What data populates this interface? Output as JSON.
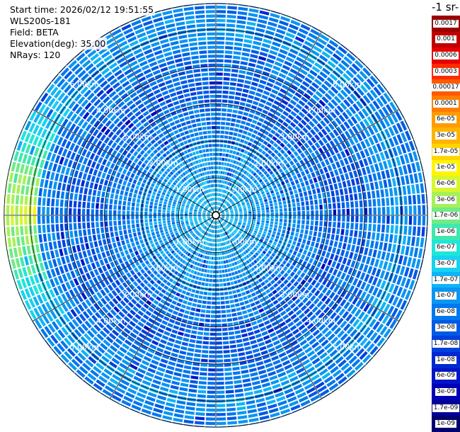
{
  "info": {
    "start_time": "Start time: 2026/02/12 19:51:55",
    "instrument": "WLS200s-181",
    "field": "Field: BETA",
    "elevation": "Elevation(deg): 35.00",
    "nrays": "NRays: 120"
  },
  "colorbar": {
    "unit_label": "-1 sr-",
    "levels": [
      {
        "label": "0.0017",
        "color": "#9b0000"
      },
      {
        "label": "0.001",
        "color": "#c00000"
      },
      {
        "label": "0.0006",
        "color": "#e60000"
      },
      {
        "label": "0.0003",
        "color": "#ff2a00"
      },
      {
        "label": "0.00017",
        "color": "#ff5a00"
      },
      {
        "label": "0.0001",
        "color": "#ff7d00"
      },
      {
        "label": "6e-05",
        "color": "#ff9c00"
      },
      {
        "label": "3e-05",
        "color": "#ffb400"
      },
      {
        "label": "1.7e-05",
        "color": "#ffd400"
      },
      {
        "label": "1e-05",
        "color": "#fff500"
      },
      {
        "label": "6e-06",
        "color": "#d9f52e"
      },
      {
        "label": "3e-06",
        "color": "#a8f05a"
      },
      {
        "label": "1.7e-06",
        "color": "#70eb85"
      },
      {
        "label": "1e-06",
        "color": "#40e8b0"
      },
      {
        "label": "6e-07",
        "color": "#1ee6d8"
      },
      {
        "label": "3e-07",
        "color": "#18d2f0"
      },
      {
        "label": "1.7e-07",
        "color": "#10b4f5"
      },
      {
        "label": "1e-07",
        "color": "#0a96f2"
      },
      {
        "label": "6e-08",
        "color": "#0078ee"
      },
      {
        "label": "3e-08",
        "color": "#005ae6"
      },
      {
        "label": "1.7e-08",
        "color": "#0040dc"
      },
      {
        "label": "1e-08",
        "color": "#0028d2"
      },
      {
        "label": "6e-09",
        "color": "#0014c8"
      },
      {
        "label": "3e-09",
        "color": "#0000b4"
      },
      {
        "label": "1.7e-09",
        "color": "#000096"
      },
      {
        "label": "1e-09",
        "color": "#00006e"
      }
    ]
  },
  "chart_data": {
    "type": "heatmap",
    "projection": "polar",
    "field": "BETA",
    "nrays": 120,
    "range_rings": [
      {
        "range_km": 1,
        "label": "1.00km"
      },
      {
        "range_km": 2,
        "label": "2.00km"
      },
      {
        "range_km": 3,
        "label": "3.00km"
      },
      {
        "range_km": 4,
        "label": "4.00km"
      },
      {
        "range_km": 5,
        "label": "5.00km"
      }
    ],
    "max_range_km": 5.7,
    "azimuth_lines_deg": [
      0,
      30,
      60,
      90,
      120,
      150,
      180,
      210,
      240,
      270,
      300,
      330
    ],
    "value_profile": [
      {
        "range_km": 0.5,
        "level_index": 16
      },
      {
        "range_km": 1.5,
        "level_index": 17
      },
      {
        "range_km": 2.5,
        "level_index": 18
      },
      {
        "range_km": 3.5,
        "level_index": 19
      },
      {
        "range_km": 4.5,
        "level_index": 18
      },
      {
        "range_km": 5.0,
        "level_index": 17
      },
      {
        "range_km": 5.5,
        "level_index": 18
      }
    ],
    "high_value_sector": {
      "azimuth_deg": 270,
      "range_km": [
        4.8,
        5.7
      ],
      "level_index": 10
    }
  }
}
